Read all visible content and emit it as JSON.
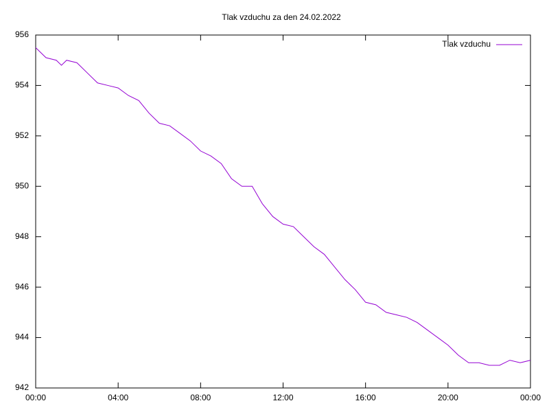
{
  "chart_data": {
    "type": "line",
    "title": "Tlak vzduchu za den 24.02.2022",
    "x": [
      0,
      0.5,
      1,
      1.25,
      1.5,
      2,
      2.5,
      3,
      3.5,
      4,
      4.5,
      5,
      5.5,
      6,
      6.5,
      7,
      7.5,
      8,
      8.5,
      9,
      9.5,
      10,
      10.5,
      11,
      11.5,
      12,
      12.5,
      13,
      13.5,
      14,
      14.5,
      15,
      15.5,
      16,
      16.5,
      17,
      17.5,
      18,
      18.5,
      19,
      19.5,
      20,
      20.5,
      21,
      21.5,
      22,
      22.5,
      23,
      23.5,
      24
    ],
    "series": [
      {
        "name": "Tlak vzduchu",
        "color": "#9400d3",
        "values": [
          955.5,
          955.1,
          955.0,
          954.8,
          955.0,
          954.9,
          954.5,
          954.1,
          954.0,
          953.9,
          953.6,
          953.4,
          952.9,
          952.5,
          952.4,
          952.1,
          951.8,
          951.4,
          951.2,
          950.9,
          950.3,
          950.0,
          950.0,
          949.3,
          948.8,
          948.5,
          948.4,
          948.0,
          947.6,
          947.3,
          946.8,
          946.3,
          945.9,
          945.4,
          945.3,
          945.0,
          944.9,
          944.8,
          944.6,
          944.3,
          944.0,
          943.7,
          943.3,
          943.0,
          943.0,
          942.9,
          942.9,
          943.1,
          943.0,
          943.1
        ]
      }
    ],
    "xlim": [
      0,
      24
    ],
    "xticks": [
      {
        "value": 0,
        "label": "00:00"
      },
      {
        "value": 4,
        "label": "04:00"
      },
      {
        "value": 8,
        "label": "08:00"
      },
      {
        "value": 12,
        "label": "12:00"
      },
      {
        "value": 16,
        "label": "16:00"
      },
      {
        "value": 20,
        "label": "20:00"
      },
      {
        "value": 24,
        "label": "00:00"
      }
    ],
    "ylim": [
      942,
      956
    ],
    "yticks": [
      942,
      944,
      946,
      948,
      950,
      952,
      954,
      956
    ],
    "grid": false,
    "legend": "top-right"
  }
}
